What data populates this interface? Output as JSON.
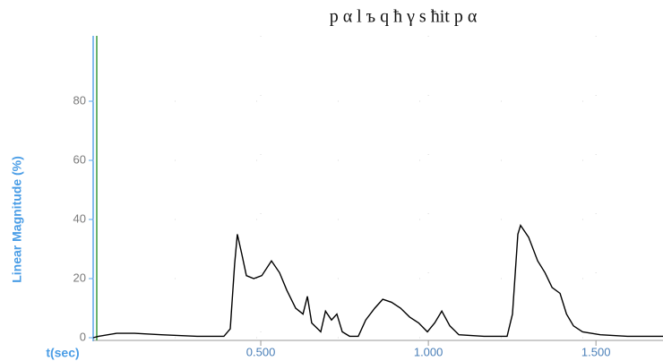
{
  "chart_data": {
    "type": "line",
    "title": "p α l ъ q  ħ γ s  ħit       p α",
    "x_label": "t(sec)",
    "y_label": "Linear Magnitude (%)",
    "xlim": [
      0,
      1.7
    ],
    "ylim": [
      0,
      100
    ],
    "xticks": [
      {
        "value": 0.5,
        "label": "0.500"
      },
      {
        "value": 1.0,
        "label": "1.000"
      },
      {
        "value": 1.5,
        "label": "1.500"
      }
    ],
    "yticks": [
      0,
      20,
      40,
      60,
      80
    ],
    "grid": true,
    "series": [
      {
        "color": "#000000",
        "x": [
          0,
          0.016,
          0.07,
          0.123,
          0.203,
          0.31,
          0.39,
          0.409,
          0.422,
          0.43,
          0.444,
          0.457,
          0.479,
          0.503,
          0.532,
          0.556,
          0.578,
          0.604,
          0.626,
          0.639,
          0.652,
          0.679,
          0.693,
          0.711,
          0.727,
          0.743,
          0.765,
          0.791,
          0.813,
          0.84,
          0.864,
          0.89,
          0.917,
          0.944,
          0.971,
          0.997,
          1.019,
          1.04,
          1.064,
          1.091,
          1.166,
          1.235,
          1.251,
          1.267,
          1.275,
          1.299,
          1.326,
          1.348,
          1.369,
          1.393,
          1.412,
          1.433,
          1.46,
          1.513,
          1.594,
          1.701
        ],
        "values": [
          0,
          0.5,
          1.5,
          1.5,
          1,
          0.5,
          0.5,
          3,
          25,
          35,
          28,
          21,
          20,
          21,
          26,
          22,
          16,
          10,
          8,
          14,
          5,
          2,
          9,
          6,
          8,
          2,
          0.5,
          0.5,
          6,
          10,
          13,
          12,
          10,
          7,
          5,
          2,
          5,
          9,
          4,
          1,
          0.5,
          0.5,
          8,
          35,
          38,
          34,
          26,
          22,
          17,
          15,
          8,
          4,
          2,
          1,
          0.5,
          0.5
        ]
      }
    ]
  }
}
